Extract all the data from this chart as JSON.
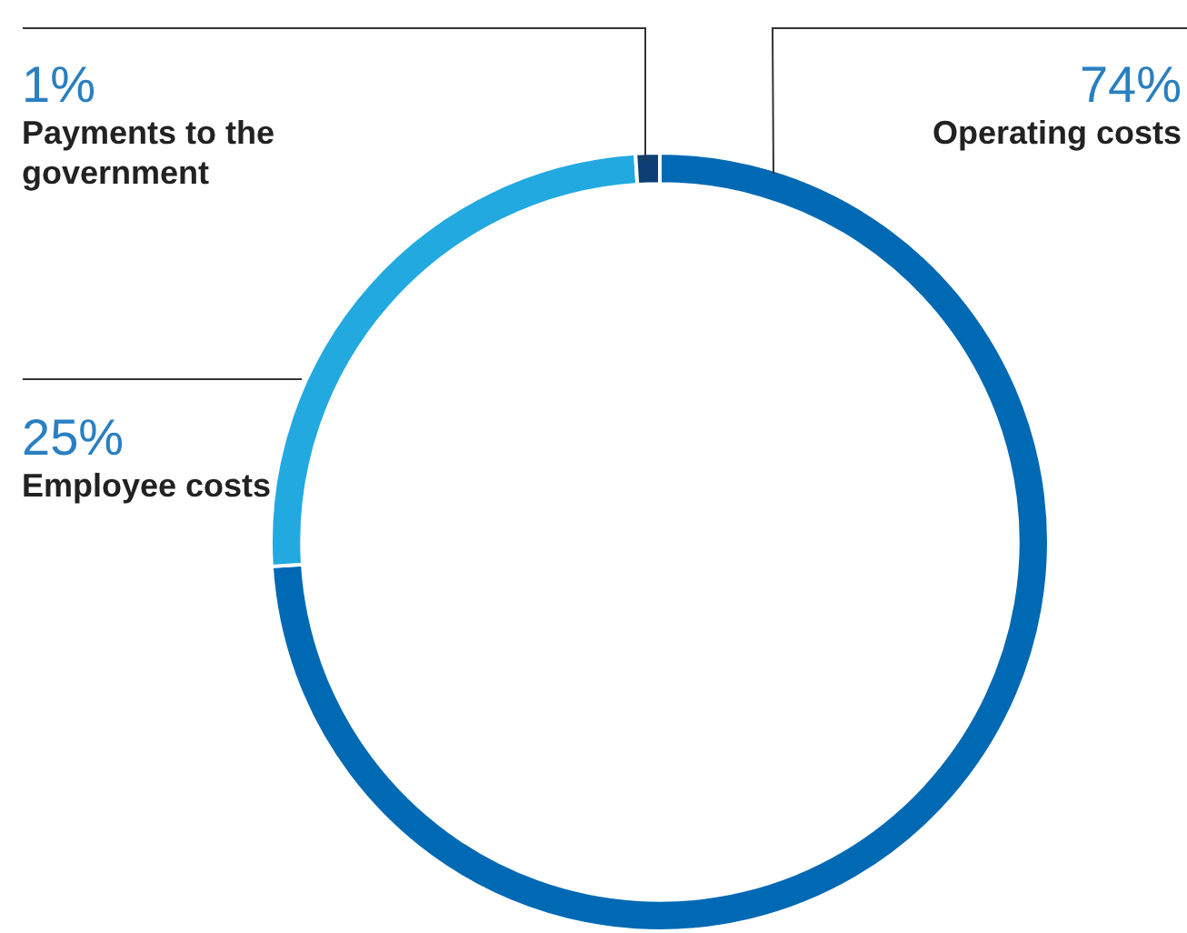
{
  "chart_data": {
    "type": "donut",
    "categories": [
      "Operating costs",
      "Employee costs",
      "Payments to the government"
    ],
    "values": [
      74,
      25,
      1
    ],
    "colors": [
      "#0069b4",
      "#22a9e0",
      "#0d3f74"
    ],
    "value_labels": [
      "74%",
      "25%",
      "1%"
    ],
    "legend": false
  }
}
